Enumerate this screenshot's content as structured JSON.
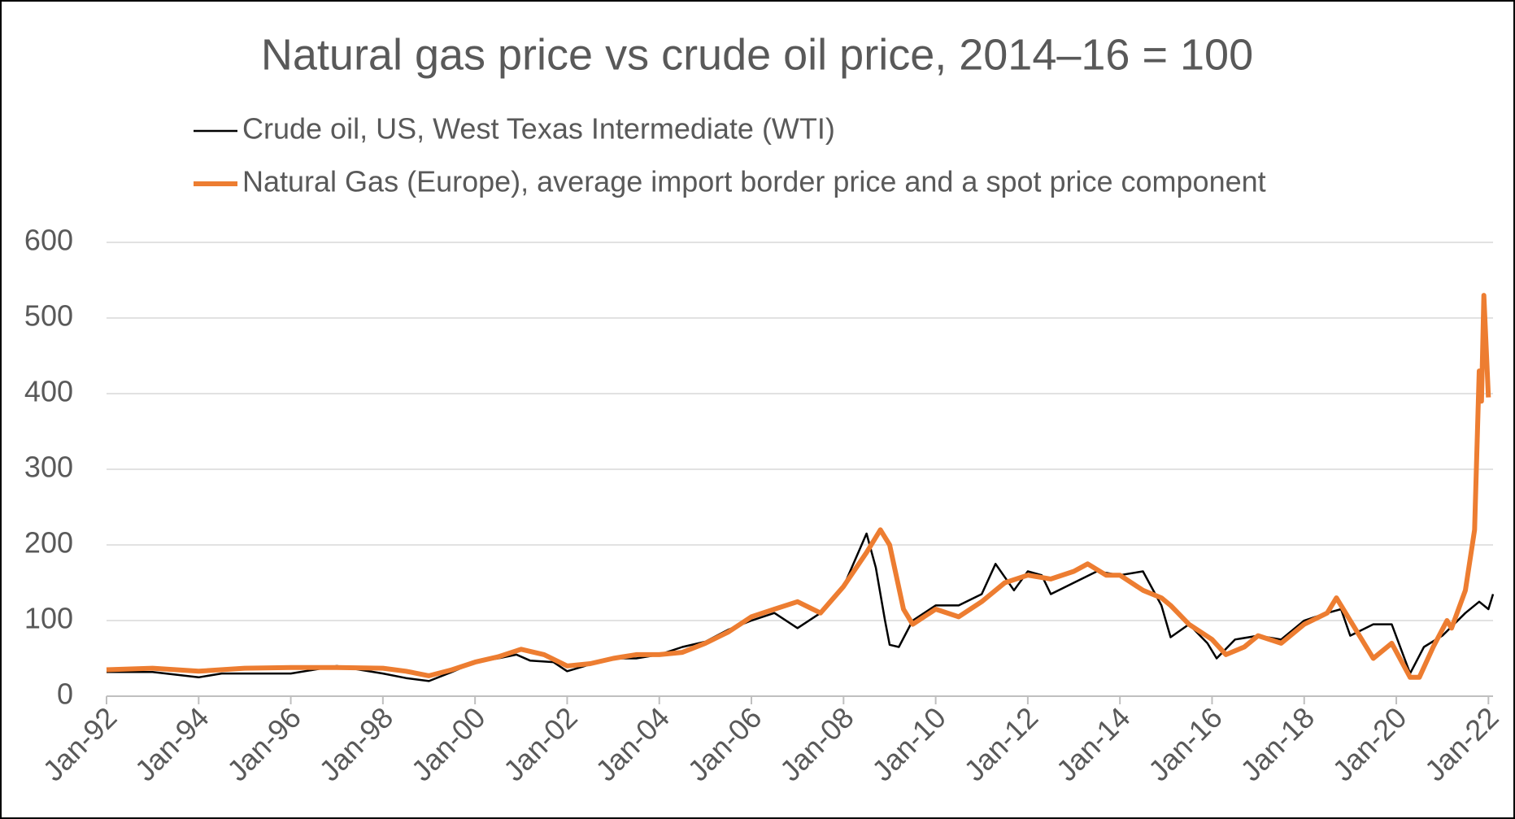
{
  "chart_data": {
    "type": "line",
    "title": "Natural gas price vs crude oil price, 2014–16 = 100",
    "legend": "top",
    "grid": true,
    "xlim": [
      1992,
      2022.1
    ],
    "xticks": [
      {
        "value": 1992,
        "label": "Jan-92"
      },
      {
        "value": 1994,
        "label": "Jan-94"
      },
      {
        "value": 1996,
        "label": "Jan-96"
      },
      {
        "value": 1998,
        "label": "Jan-98"
      },
      {
        "value": 2000,
        "label": "Jan-00"
      },
      {
        "value": 2002,
        "label": "Jan-02"
      },
      {
        "value": 2004,
        "label": "Jan-04"
      },
      {
        "value": 2006,
        "label": "Jan-06"
      },
      {
        "value": 2008,
        "label": "Jan-08"
      },
      {
        "value": 2010,
        "label": "Jan-10"
      },
      {
        "value": 2012,
        "label": "Jan-12"
      },
      {
        "value": 2014,
        "label": "Jan-14"
      },
      {
        "value": 2016,
        "label": "Jan-16"
      },
      {
        "value": 2018,
        "label": "Jan-18"
      },
      {
        "value": 2020,
        "label": "Jan-20"
      },
      {
        "value": 2022,
        "label": "Jan-22"
      }
    ],
    "ylim": [
      0,
      600
    ],
    "yticks": [
      0,
      100,
      200,
      300,
      400,
      500,
      600
    ],
    "series": [
      {
        "name": "Crude oil, US, West Texas Intermediate (WTI)",
        "color": "#000000",
        "width": 2.5,
        "x": [
          1992,
          1993,
          1994,
          1994.5,
          1995,
          1996,
          1996.5,
          1997,
          1997.5,
          1998,
          1998.5,
          1999,
          1999.5,
          2000,
          2000.5,
          2000.9,
          2001.2,
          2001.7,
          2002,
          2002.5,
          2003,
          2003.5,
          2004,
          2004.5,
          2005,
          2005.5,
          2006,
          2006.5,
          2007,
          2007.5,
          2008,
          2008.5,
          2008.7,
          2008.9,
          2009,
          2009.2,
          2009.5,
          2010,
          2010.5,
          2011,
          2011.3,
          2011.7,
          2012,
          2012.3,
          2012.5,
          2013,
          2013.5,
          2014,
          2014.5,
          2014.9,
          2015.1,
          2015.5,
          2015.9,
          2016.1,
          2016.5,
          2017,
          2017.5,
          2018,
          2018.5,
          2018.8,
          2019,
          2019.5,
          2019.9,
          2020.3,
          2020.6,
          2021,
          2021.5,
          2021.8,
          2022,
          2022.1
        ],
        "values": [
          32,
          32,
          25,
          30,
          30,
          30,
          35,
          40,
          35,
          30,
          24,
          20,
          32,
          45,
          50,
          55,
          47,
          45,
          33,
          42,
          50,
          50,
          55,
          65,
          72,
          88,
          100,
          110,
          90,
          110,
          145,
          215,
          170,
          100,
          68,
          65,
          100,
          120,
          120,
          135,
          175,
          140,
          165,
          160,
          135,
          150,
          165,
          160,
          165,
          120,
          78,
          95,
          70,
          50,
          75,
          80,
          75,
          100,
          110,
          115,
          80,
          95,
          95,
          30,
          65,
          80,
          110,
          125,
          115,
          135
        ]
      },
      {
        "name": "Natural Gas (Europe), average import border price and a spot price component",
        "color": "#ed7d31",
        "width": 6,
        "x": [
          1992,
          1993,
          1994,
          1995,
          1996,
          1997,
          1998,
          1998.5,
          1999,
          1999.5,
          2000,
          2000.5,
          2001,
          2001.5,
          2002,
          2002.5,
          2003,
          2003.5,
          2004,
          2004.5,
          2005,
          2005.5,
          2006,
          2006.5,
          2007,
          2007.5,
          2008,
          2008.5,
          2008.8,
          2009,
          2009.3,
          2009.5,
          2010,
          2010.5,
          2011,
          2011.5,
          2012,
          2012.5,
          2013,
          2013.3,
          2013.7,
          2014,
          2014.5,
          2014.9,
          2015.1,
          2015.5,
          2016,
          2016.3,
          2016.7,
          2017,
          2017.5,
          2018,
          2018.5,
          2018.7,
          2019,
          2019.5,
          2019.9,
          2020.3,
          2020.5,
          2020.8,
          2021.1,
          2021.2,
          2021.5,
          2021.7,
          2021.8,
          2021.85,
          2021.9,
          2022
        ],
        "values": [
          35,
          37,
          33,
          37,
          38,
          38,
          37,
          33,
          27,
          35,
          45,
          52,
          62,
          55,
          40,
          43,
          50,
          55,
          55,
          58,
          70,
          85,
          105,
          115,
          125,
          110,
          145,
          190,
          220,
          200,
          115,
          95,
          115,
          105,
          125,
          150,
          160,
          155,
          165,
          175,
          160,
          160,
          140,
          130,
          120,
          95,
          75,
          55,
          65,
          80,
          70,
          95,
          110,
          130,
          100,
          50,
          70,
          25,
          25,
          65,
          100,
          90,
          140,
          220,
          430,
          390,
          530,
          395
        ]
      }
    ]
  }
}
